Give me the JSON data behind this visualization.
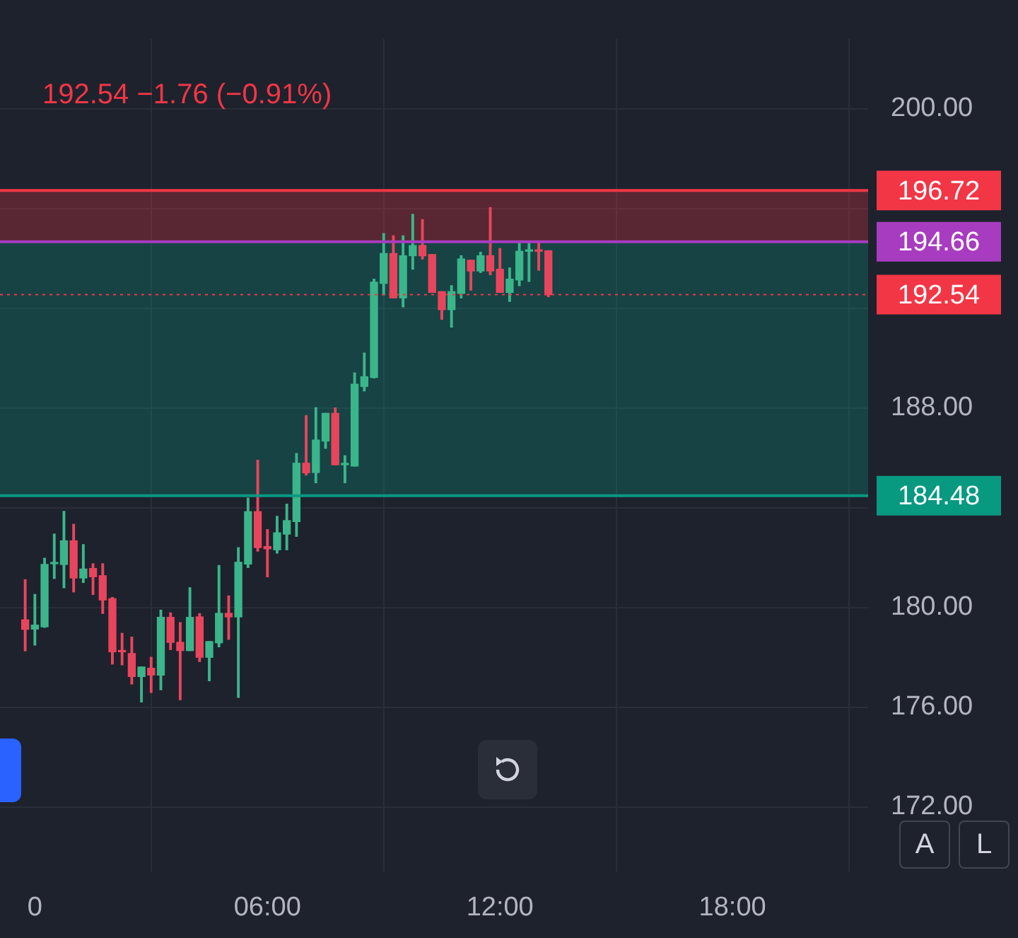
{
  "chart_data": {
    "type": "candlestick",
    "subtitle": "192.54  −1.76 (−0.91%)",
    "x": [
      -0.25,
      0,
      0.25,
      0.5,
      0.75,
      1,
      1.25,
      1.5,
      1.75,
      2,
      2.25,
      2.5,
      2.75,
      3,
      3.25,
      3.5,
      3.75,
      4,
      4.25,
      4.5,
      4.75,
      5,
      5.25,
      5.5,
      5.75,
      6,
      6.25,
      6.5,
      6.75,
      7,
      7.25,
      7.5,
      7.75,
      8,
      8.25,
      8.5,
      8.75,
      9,
      9.25,
      9.5,
      9.75,
      10,
      10.25,
      10.5,
      10.75,
      11,
      11.25,
      11.5,
      11.75,
      12,
      12.25,
      12.5,
      12.75,
      13,
      13.25
    ],
    "ohlc": [
      [
        179.5,
        181.11,
        178.26,
        179.12
      ],
      [
        179.13,
        180.52,
        178.49,
        179.29
      ],
      [
        179.22,
        181.97,
        179.2,
        181.72
      ],
      [
        181.75,
        182.94,
        181.16,
        181.8
      ],
      [
        181.72,
        183.85,
        180.79,
        182.67
      ],
      [
        182.67,
        183.33,
        180.62,
        181.18
      ],
      [
        181.18,
        182.52,
        181.0,
        181.54
      ],
      [
        181.56,
        181.75,
        180.52,
        181.23
      ],
      [
        181.27,
        181.75,
        179.76,
        180.3
      ],
      [
        180.35,
        180.4,
        177.73,
        178.22
      ],
      [
        178.24,
        178.96,
        177.7,
        178.22
      ],
      [
        178.15,
        178.81,
        176.93,
        177.23
      ],
      [
        177.23,
        177.61,
        176.21,
        177.61
      ],
      [
        177.56,
        178.0,
        176.59,
        177.29
      ],
      [
        177.29,
        179.89,
        176.7,
        179.6
      ],
      [
        179.6,
        179.78,
        178.31,
        178.6
      ],
      [
        178.6,
        179.39,
        176.3,
        178.27
      ],
      [
        178.27,
        180.79,
        178.27,
        179.6
      ],
      [
        179.62,
        179.75,
        177.83,
        178.0
      ],
      [
        178.0,
        178.63,
        177.06,
        178.63
      ],
      [
        178.58,
        181.68,
        178.42,
        179.76
      ],
      [
        179.76,
        180.46,
        178.72,
        179.62
      ],
      [
        179.62,
        182.4,
        176.39,
        181.81
      ],
      [
        181.74,
        184.38,
        181.6,
        183.84
      ],
      [
        183.84,
        185.9,
        182.26,
        182.4
      ],
      [
        182.44,
        183.12,
        181.23,
        182.35
      ],
      [
        182.31,
        183.65,
        182.18,
        182.99
      ],
      [
        182.94,
        184.14,
        182.31,
        183.48
      ],
      [
        183.44,
        186.17,
        182.85,
        185.78
      ],
      [
        185.78,
        187.69,
        185.31,
        185.4
      ],
      [
        185.41,
        188.01,
        185.0,
        186.71
      ],
      [
        186.67,
        187.78,
        186.38,
        187.78
      ],
      [
        187.78,
        188.0,
        185.72,
        185.72
      ],
      [
        185.72,
        186.08,
        185.0,
        185.76
      ],
      [
        185.67,
        189.4,
        185.67,
        188.95
      ],
      [
        188.86,
        190.2,
        188.68,
        189.25
      ],
      [
        189.22,
        193.16,
        189.2,
        193.04
      ],
      [
        192.99,
        194.99,
        192.53,
        194.19
      ],
      [
        194.19,
        194.9,
        192.41,
        192.41
      ],
      [
        192.41,
        194.9,
        192.05,
        194.1
      ],
      [
        194.1,
        195.76,
        193.56,
        194.51
      ],
      [
        194.51,
        195.55,
        193.97,
        194.1
      ],
      [
        194.15,
        194.15,
        192.63,
        192.63
      ],
      [
        192.66,
        192.66,
        191.55,
        191.94
      ],
      [
        191.94,
        192.9,
        191.24,
        192.66
      ],
      [
        192.59,
        194.1,
        192.41,
        193.97
      ],
      [
        193.92,
        193.92,
        192.72,
        193.49
      ],
      [
        193.49,
        194.24,
        193.43,
        194.1
      ],
      [
        194.1,
        196.03,
        193.34,
        193.49
      ],
      [
        193.56,
        194.39,
        192.63,
        192.63
      ],
      [
        192.63,
        193.61,
        192.27,
        193.16
      ],
      [
        193.13,
        194.63,
        192.9,
        194.28
      ],
      [
        194.28,
        194.6,
        193.07,
        194.3
      ],
      [
        194.3,
        194.63,
        193.52,
        194.28
      ],
      [
        194.3,
        194.3,
        192.46,
        192.54
      ]
    ],
    "xlim": [
      -0.9,
      21.5
    ],
    "xticks": [
      {
        "value": 0,
        "label": "0"
      },
      {
        "value": 6,
        "label": "06:00"
      },
      {
        "value": 12,
        "label": "12:00"
      },
      {
        "value": 18,
        "label": "18:00"
      }
    ],
    "ylim": [
      169.4,
      202.8
    ],
    "yticks": [
      {
        "value": 172,
        "label": "172.00"
      },
      {
        "value": 176,
        "label": "176.00"
      },
      {
        "value": 180,
        "label": "180.00"
      },
      {
        "value": 184,
        "label": null
      },
      {
        "value": 188,
        "label": "188.00"
      },
      {
        "value": 192,
        "label": null
      },
      {
        "value": 196,
        "label": null
      },
      {
        "value": 200,
        "label": "200.00"
      }
    ],
    "grid": true,
    "bands": [
      {
        "axis": "y",
        "from": 194.66,
        "to": 196.72,
        "color": "#f23645"
      },
      {
        "axis": "y",
        "from": 184.48,
        "to": 194.66,
        "color": "#089981"
      }
    ],
    "ref_lines": [
      {
        "axis": "y",
        "value": 196.72,
        "label": "196.72",
        "color": "#f23645"
      },
      {
        "axis": "y",
        "value": 194.66,
        "label": "194.66",
        "color": "#a83cc0"
      },
      {
        "axis": "y",
        "value": 192.54,
        "label": "192.54",
        "color": "#f23645",
        "line_style": "dotted"
      },
      {
        "axis": "y",
        "value": 184.48,
        "label": "184.48",
        "color": "#089981"
      }
    ],
    "annotations": [
      "A",
      "L"
    ]
  }
}
